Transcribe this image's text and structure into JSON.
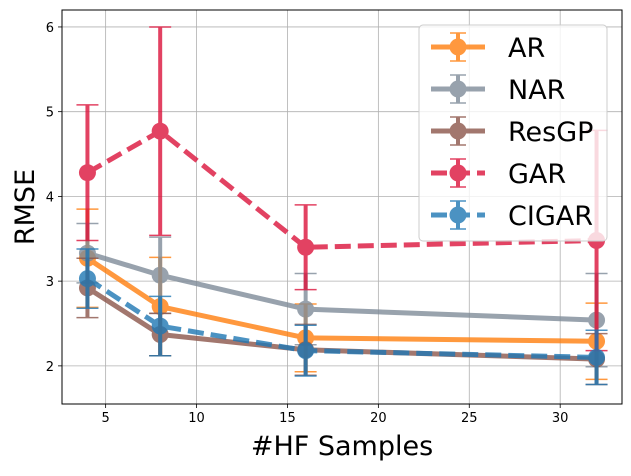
{
  "chart_data": {
    "type": "line",
    "title": "",
    "xlabel": "#HF Samples",
    "ylabel": "RMSE",
    "xlim": [
      2.6,
      33.4
    ],
    "ylim": [
      1.55,
      6.2
    ],
    "xticks": [
      5,
      10,
      15,
      20,
      25,
      30
    ],
    "yticks": [
      2,
      3,
      4,
      5,
      6
    ],
    "grid": true,
    "legend_position": "top-right",
    "x": [
      4,
      8,
      16,
      32
    ],
    "series": [
      {
        "name": "AR",
        "color": "#ff7f0e",
        "dashed": false,
        "values": [
          3.27,
          2.7,
          2.33,
          2.29
        ],
        "err_low": [
          0.58,
          0.58,
          0.4,
          0.45
        ],
        "err_high": [
          0.58,
          0.58,
          0.4,
          0.45
        ]
      },
      {
        "name": "NAR",
        "color": "#7f8c99",
        "dashed": false,
        "values": [
          3.33,
          3.07,
          2.67,
          2.54
        ],
        "err_low": [
          0.35,
          0.45,
          0.42,
          0.55
        ],
        "err_high": [
          0.35,
          0.45,
          0.42,
          0.55
        ]
      },
      {
        "name": "ResGP",
        "color": "#8c564b",
        "dashed": false,
        "values": [
          2.92,
          2.37,
          2.19,
          2.08
        ],
        "err_low": [
          0.35,
          0.25,
          0.3,
          0.3
        ],
        "err_high": [
          0.35,
          0.25,
          0.3,
          0.3
        ]
      },
      {
        "name": "GAR",
        "color": "#dc143c",
        "dashed": true,
        "values": [
          4.28,
          4.77,
          3.4,
          3.48
        ],
        "err_low": [
          0.8,
          1.23,
          0.5,
          1.3
        ],
        "err_high": [
          0.8,
          1.23,
          0.5,
          1.3
        ]
      },
      {
        "name": "CIGAR",
        "color": "#1f77b4",
        "dashed": true,
        "values": [
          3.03,
          2.47,
          2.18,
          2.1
        ],
        "err_low": [
          0.35,
          0.35,
          0.3,
          0.32
        ],
        "err_high": [
          0.35,
          0.35,
          0.3,
          0.32
        ]
      }
    ]
  }
}
